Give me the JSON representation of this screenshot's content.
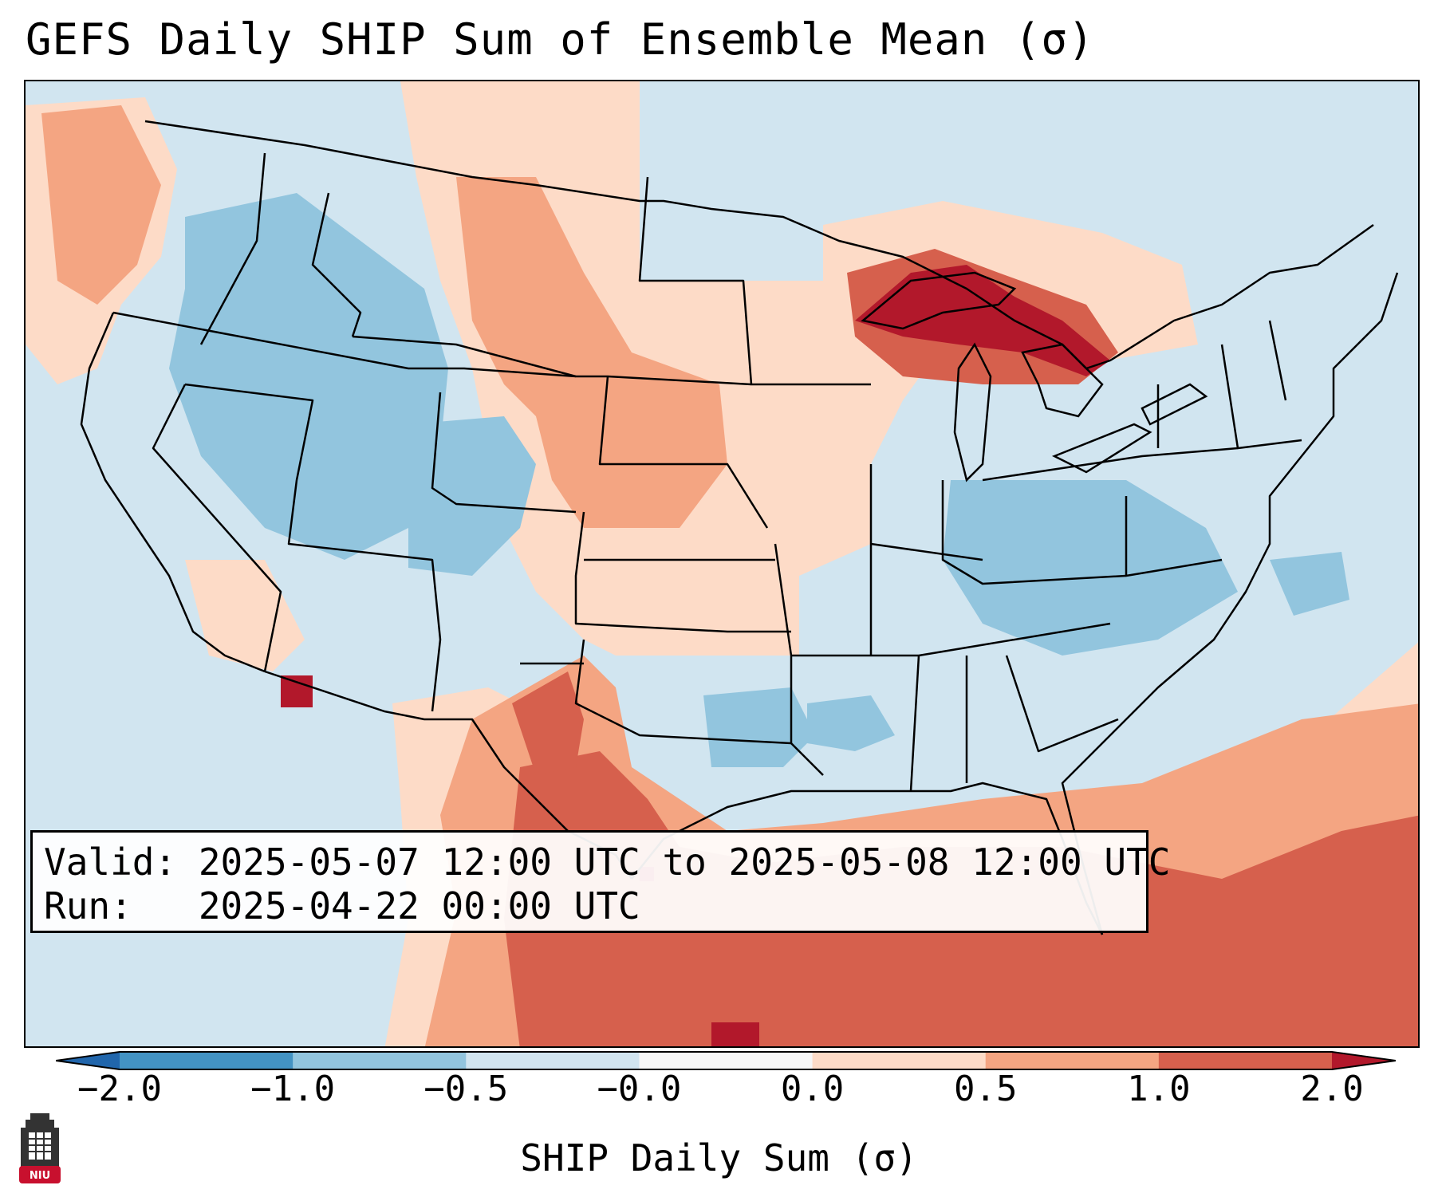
{
  "title": "GEFS Daily SHIP Sum of Ensemble Mean (σ)",
  "valid_line": "Valid: 2025-05-07 12:00 UTC to 2025-05-08 12:00 UTC",
  "run_line": "Run:   2025-04-22 00:00 UTC",
  "colorbar": {
    "label": "SHIP Daily Sum (σ)",
    "ticks": [
      "−2.0",
      "−1.0",
      "−0.5",
      "−0.0",
      "0.0",
      "0.5",
      "1.0",
      "2.0"
    ],
    "bins": [
      {
        "range": "-2.0 to -1.0",
        "color": "#4393c3"
      },
      {
        "range": "-1.0 to -0.5",
        "color": "#92c5de"
      },
      {
        "range": "-0.5 to -0.0",
        "color": "#d1e5f0"
      },
      {
        "range": "-0.0 to 0.0",
        "color": "#f7f7f7"
      },
      {
        "range": "0.0 to 0.5",
        "color": "#fddbc7"
      },
      {
        "range": "0.5 to 1.0",
        "color": "#f4a582"
      },
      {
        "range": "1.0 to 2.0",
        "color": "#d6604d"
      }
    ],
    "under_color": "#2166ac",
    "over_color": "#b2182b"
  },
  "map": {
    "projection": "Lambert conformal, CONUS",
    "background_color": "#d1e5f0",
    "anomaly_regions": [
      {
        "area": "Great Lakes / Ontario",
        "category": "1.0 to 2.0+",
        "color": "#b2182b"
      },
      {
        "area": "Northern Plains / Dakotas",
        "category": "0.5 to 1.0",
        "color": "#f4a582"
      },
      {
        "area": "Texas / Gulf of Mexico",
        "category": "1.0 to 2.0",
        "color": "#d6604d"
      },
      {
        "area": "Western Atlantic / Caribbean",
        "category": "0.5 to 2.0",
        "color": "#d6604d"
      },
      {
        "area": "Southern Arizona",
        "category": "2.0+",
        "color": "#b2182b"
      },
      {
        "area": "Intermountain West",
        "category": "-1.0 to -0.5",
        "color": "#92c5de"
      },
      {
        "area": "Ohio Valley / Carolinas",
        "category": "-1.0 to -0.5",
        "color": "#92c5de"
      }
    ]
  },
  "logo": {
    "text": "NIU",
    "color": "#c8102e"
  }
}
